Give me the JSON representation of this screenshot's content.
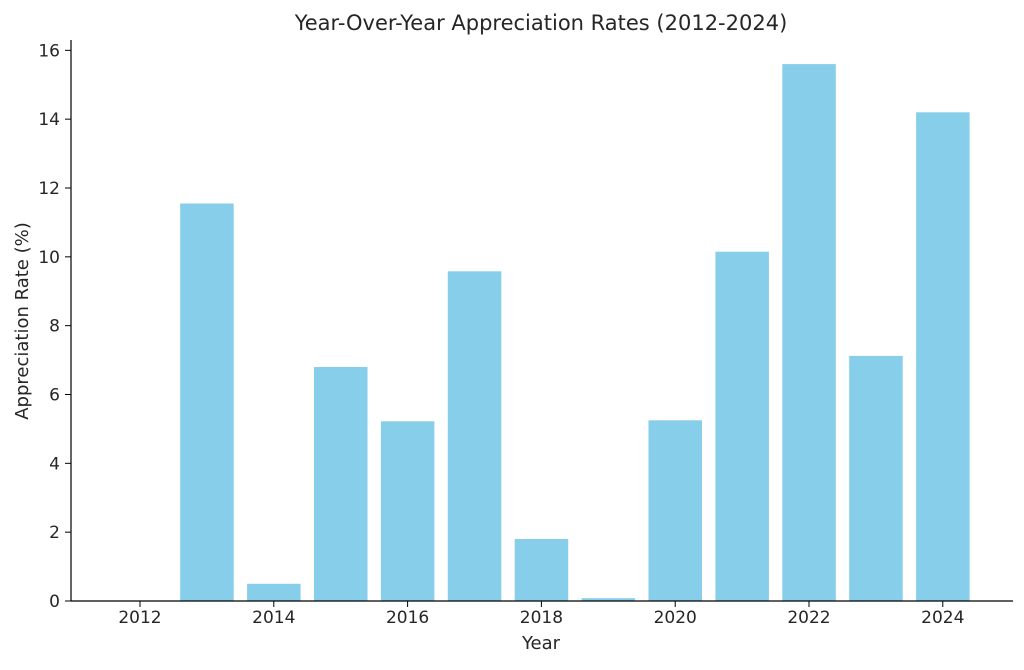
{
  "chart_data": {
    "type": "bar",
    "title": "Year-Over-Year Appreciation Rates (2012-2024)",
    "xlabel": "Year",
    "ylabel": "Appreciation Rate (%)",
    "categories": [
      "2012",
      "2013",
      "2014",
      "2015",
      "2016",
      "2017",
      "2018",
      "2019",
      "2020",
      "2021",
      "2022",
      "2023",
      "2024"
    ],
    "values": [
      0,
      11.55,
      0.5,
      6.8,
      5.22,
      9.58,
      1.8,
      0.08,
      5.25,
      10.15,
      15.6,
      7.12,
      14.2
    ],
    "xticks": [
      "2012",
      "2014",
      "2016",
      "2018",
      "2020",
      "2022",
      "2024"
    ],
    "yticks": [
      "0",
      "2",
      "4",
      "6",
      "8",
      "10",
      "12",
      "14",
      "16"
    ],
    "ylim": [
      0,
      16.3
    ],
    "bar_color": "#87CEEB",
    "grid": false,
    "legend": "none"
  }
}
